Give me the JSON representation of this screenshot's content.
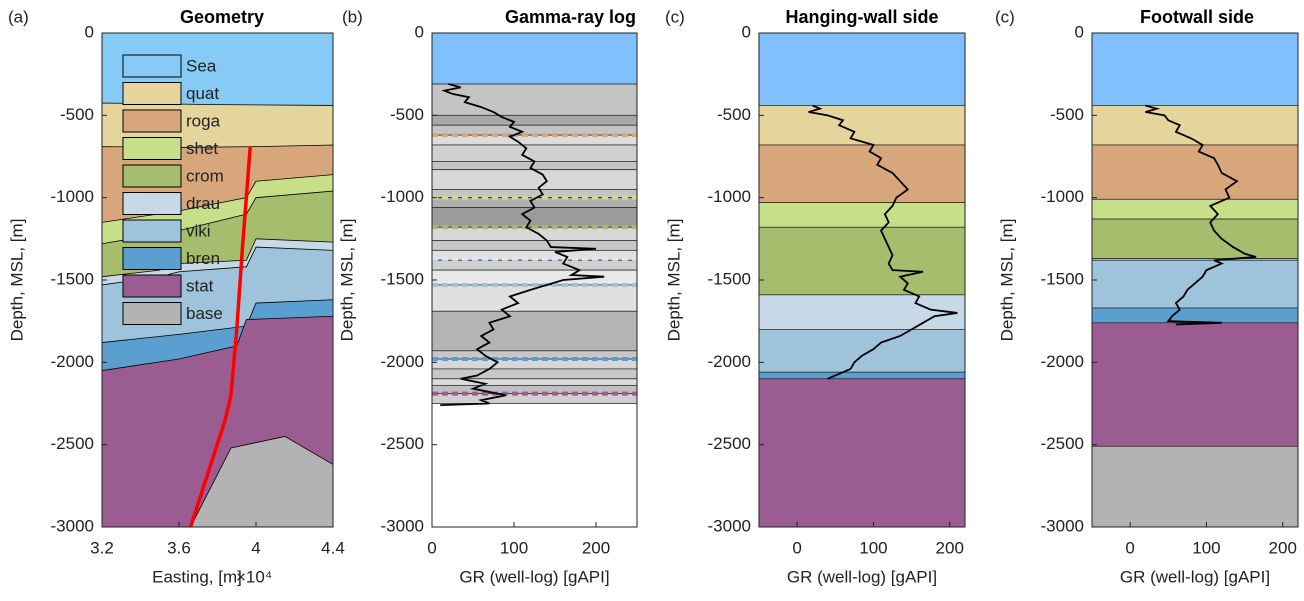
{
  "chart_data": [
    {
      "type": "area",
      "panel_label": "(a)",
      "title": "Geometry",
      "x_label": "Easting, [m]",
      "x_multiplier": "×10⁴",
      "y_label": "Depth, MSL, [m]",
      "xlim": [
        3.2,
        4.4
      ],
      "xticks": [
        3.2,
        3.6,
        4,
        4.4
      ],
      "ylim": [
        -3000,
        0
      ],
      "yticks": [
        0,
        -500,
        -1000,
        -1500,
        -2000,
        -2500,
        -3000
      ],
      "layers": [
        {
          "name": "Sea",
          "color": "#86cbf5",
          "x": [
            3.2,
            4.4
          ],
          "top": [
            0,
            0
          ]
        },
        {
          "name": "quat",
          "color": "#e3d59b",
          "x": [
            3.2,
            3.8,
            4.4
          ],
          "top": [
            -425,
            -435,
            -440
          ]
        },
        {
          "name": "roga",
          "color": "#d7a77b",
          "x": [
            3.2,
            3.6,
            4.0,
            4.4
          ],
          "top": [
            -690,
            -695,
            -690,
            -680
          ]
        },
        {
          "name": "shet",
          "color": "#c8df8a",
          "x": [
            3.2,
            3.6,
            3.95,
            4.0,
            4.4
          ],
          "top": [
            -1150,
            -1080,
            -1000,
            -900,
            -860
          ]
        },
        {
          "name": "crom",
          "color": "#a5bd6d",
          "x": [
            3.2,
            3.6,
            3.95,
            4.0,
            4.4
          ],
          "top": [
            -1280,
            -1200,
            -1100,
            -1000,
            -960
          ]
        },
        {
          "name": "drau",
          "color": "#c7d8e6",
          "x": [
            3.2,
            3.5,
            3.6,
            3.95,
            4.0,
            4.4
          ],
          "top": [
            -1480,
            -1440,
            -1400,
            -1380,
            -1250,
            -1270
          ]
        },
        {
          "name": "viki",
          "color": "#9fc3da",
          "x": [
            3.2,
            3.5,
            3.6,
            3.95,
            4.0,
            4.4
          ],
          "top": [
            -1530,
            -1480,
            -1450,
            -1420,
            -1300,
            -1320
          ]
        },
        {
          "name": "bren",
          "color": "#5a9fd0",
          "x": [
            3.2,
            3.6,
            3.95,
            4.0,
            4.4
          ],
          "top": [
            -1880,
            -1830,
            -1780,
            -1640,
            -1620
          ]
        },
        {
          "name": "stat",
          "color": "#9b5c92",
          "x": [
            3.2,
            3.6,
            3.9,
            3.95,
            4.4
          ],
          "top": [
            -2050,
            -1980,
            -1900,
            -1740,
            -1720
          ]
        },
        {
          "name": "base",
          "color": "#b3b3b3",
          "x": [
            3.66,
            3.87,
            4.15,
            4.4
          ],
          "top": [
            -3000,
            -2520,
            -2450,
            -2620
          ]
        }
      ],
      "fault": {
        "color": "#ff0000",
        "x": [
          3.97,
          3.93,
          3.9,
          3.87,
          3.84,
          3.66
        ],
        "y": [
          -690,
          -1300,
          -1800,
          -2200,
          -2350,
          -3000
        ]
      }
    },
    {
      "type": "line",
      "panel_label": "(b)",
      "title": "Gamma-ray log",
      "x_label": "GR (well-log) [gAPI]",
      "y_label": "Depth, MSL, [m]",
      "xlim": [
        0,
        250
      ],
      "xticks": [
        0,
        100,
        200
      ],
      "ylim": [
        -3000,
        0
      ],
      "yticks": [
        0,
        -500,
        -1000,
        -1500,
        -2000,
        -2500,
        -3000
      ],
      "layers": [
        {
          "top": 0,
          "bottom": -310,
          "color": "#80c0ff"
        },
        {
          "top": -310,
          "bottom": -500,
          "color": "#c4c4c4"
        },
        {
          "top": -500,
          "bottom": -560,
          "color": "#a8a8a8"
        },
        {
          "top": -560,
          "bottom": -620,
          "color": "#c4c4c4"
        },
        {
          "top": -620,
          "bottom": -680,
          "color": "#dcdcdc"
        },
        {
          "top": -680,
          "bottom": -780,
          "color": "#d0d0d0"
        },
        {
          "top": -780,
          "bottom": -830,
          "color": "#c4c4c4"
        },
        {
          "top": -830,
          "bottom": -950,
          "color": "#d8d8d8"
        },
        {
          "top": -950,
          "bottom": -1000,
          "color": "#c4c4c4"
        },
        {
          "top": -1000,
          "bottom": -1060,
          "color": "#b0b0b0"
        },
        {
          "top": -1060,
          "bottom": -1180,
          "color": "#9c9c9c"
        },
        {
          "top": -1180,
          "bottom": -1260,
          "color": "#d8d8d8"
        },
        {
          "top": -1260,
          "bottom": -1320,
          "color": "#c8c8c8"
        },
        {
          "top": -1320,
          "bottom": -1380,
          "color": "#e0e0e0"
        },
        {
          "top": -1380,
          "bottom": -1440,
          "color": "#d0d0d0"
        },
        {
          "top": -1440,
          "bottom": -1530,
          "color": "#e8e8e8"
        },
        {
          "top": -1530,
          "bottom": -1690,
          "color": "#e0e0e0"
        },
        {
          "top": -1690,
          "bottom": -1930,
          "color": "#b4b4b4"
        },
        {
          "top": -1930,
          "bottom": -1980,
          "color": "#c8c8c8"
        },
        {
          "top": -1980,
          "bottom": -2040,
          "color": "#d8d8d8"
        },
        {
          "top": -2040,
          "bottom": -2100,
          "color": "#c8c8c8"
        },
        {
          "top": -2100,
          "bottom": -2140,
          "color": "#dcdcdc"
        },
        {
          "top": -2140,
          "bottom": -2190,
          "color": "#c0c0c0"
        },
        {
          "top": -2190,
          "bottom": -2250,
          "color": "#d0d0d0"
        }
      ],
      "markers": [
        {
          "depth": -620,
          "color": "#d7a77b"
        },
        {
          "depth": -1000,
          "color": "#c8df8a"
        },
        {
          "depth": -1180,
          "color": "#a5bd6d"
        },
        {
          "depth": -1370,
          "color": "#dbe8f2"
        },
        {
          "depth": -1530,
          "color": "#9fc3da"
        },
        {
          "depth": -1980,
          "color": "#5a9fd0"
        },
        {
          "depth": -2190,
          "color": "#9b5c92"
        }
      ],
      "log": {
        "x": [
          20,
          35,
          15,
          25,
          45,
          40,
          60,
          75,
          85,
          100,
          95,
          110,
          95,
          105,
          115,
          110,
          125,
          120,
          135,
          140,
          130,
          135,
          120,
          125,
          110,
          120,
          115,
          130,
          140,
          145,
          200,
          150,
          165,
          160,
          180,
          170,
          210,
          160,
          140,
          120,
          95,
          105,
          85,
          95,
          70,
          75,
          60,
          70,
          55,
          65,
          80,
          70,
          55,
          35,
          65,
          50,
          90,
          60,
          70,
          10
        ],
        "y": [
          -310,
          -330,
          -350,
          -370,
          -390,
          -420,
          -450,
          -480,
          -510,
          -540,
          -570,
          -600,
          -630,
          -660,
          -700,
          -740,
          -780,
          -820,
          -860,
          -900,
          -940,
          -980,
          -1020,
          -1060,
          -1100,
          -1140,
          -1180,
          -1220,
          -1260,
          -1300,
          -1310,
          -1330,
          -1360,
          -1400,
          -1440,
          -1470,
          -1480,
          -1500,
          -1530,
          -1560,
          -1600,
          -1640,
          -1680,
          -1720,
          -1760,
          -1800,
          -1840,
          -1880,
          -1920,
          -1960,
          -2000,
          -2040,
          -2080,
          -2100,
          -2130,
          -2160,
          -2200,
          -2230,
          -2250,
          -2260
        ]
      }
    },
    {
      "type": "line",
      "panel_label": "(c)",
      "title": "Hanging-wall side",
      "x_label": "GR (well-log) [gAPI]",
      "y_label": "Depth, MSL, [m]",
      "xlim": [
        -50,
        220
      ],
      "xticks": [
        0,
        100,
        200
      ],
      "ylim": [
        -3000,
        0
      ],
      "yticks": [
        0,
        -500,
        -1000,
        -1500,
        -2000,
        -2500,
        -3000
      ],
      "layers": [
        {
          "top": 0,
          "bottom": -440,
          "color": "#80c0ff"
        },
        {
          "top": -440,
          "bottom": -680,
          "color": "#e3d59b"
        },
        {
          "top": -680,
          "bottom": -1030,
          "color": "#d7a77b"
        },
        {
          "top": -1030,
          "bottom": -1180,
          "color": "#c8df8a"
        },
        {
          "top": -1180,
          "bottom": -1590,
          "color": "#a5bd6d"
        },
        {
          "top": -1590,
          "bottom": -1800,
          "color": "#c7d8e6"
        },
        {
          "top": -1800,
          "bottom": -2060,
          "color": "#9fc3da"
        },
        {
          "top": -2060,
          "bottom": -2100,
          "color": "#5a9fd0"
        },
        {
          "top": -2100,
          "bottom": -3000,
          "color": "#9b5c92"
        }
      ],
      "log": {
        "x": [
          20,
          30,
          15,
          40,
          60,
          55,
          75,
          70,
          100,
          95,
          110,
          105,
          125,
          135,
          145,
          130,
          125,
          115,
          120,
          110,
          115,
          120,
          125,
          120,
          125,
          165,
          135,
          145,
          140,
          160,
          155,
          175,
          210,
          180,
          165,
          150,
          135,
          110,
          100,
          85,
          75,
          70,
          55,
          40
        ],
        "y": [
          -440,
          -460,
          -480,
          -500,
          -530,
          -560,
          -600,
          -640,
          -680,
          -720,
          -760,
          -800,
          -850,
          -900,
          -950,
          -1000,
          -1050,
          -1100,
          -1150,
          -1200,
          -1250,
          -1300,
          -1350,
          -1400,
          -1440,
          -1450,
          -1480,
          -1520,
          -1560,
          -1600,
          -1640,
          -1680,
          -1700,
          -1720,
          -1760,
          -1800,
          -1840,
          -1880,
          -1920,
          -1960,
          -2000,
          -2040,
          -2070,
          -2100
        ]
      }
    },
    {
      "type": "line",
      "panel_label": "(c)",
      "title": "Footwall side",
      "x_label": "GR (well-log) [gAPI]",
      "y_label": "Depth, MSL, [m]",
      "xlim": [
        -50,
        220
      ],
      "xticks": [
        0,
        100,
        200
      ],
      "ylim": [
        -3000,
        0
      ],
      "yticks": [
        0,
        -500,
        -1000,
        -1500,
        -2000,
        -2500,
        -3000
      ],
      "layers": [
        {
          "top": 0,
          "bottom": -440,
          "color": "#80c0ff"
        },
        {
          "top": -440,
          "bottom": -680,
          "color": "#e3d59b"
        },
        {
          "top": -680,
          "bottom": -1010,
          "color": "#d7a77b"
        },
        {
          "top": -1010,
          "bottom": -1130,
          "color": "#c8df8a"
        },
        {
          "top": -1130,
          "bottom": -1370,
          "color": "#a5bd6d"
        },
        {
          "top": -1370,
          "bottom": -1380,
          "color": "#c7d8e6"
        },
        {
          "top": -1380,
          "bottom": -1670,
          "color": "#9fc3da"
        },
        {
          "top": -1670,
          "bottom": -1760,
          "color": "#5a9fd0"
        },
        {
          "top": -1760,
          "bottom": -2510,
          "color": "#9b5c92"
        },
        {
          "top": -2510,
          "bottom": -3000,
          "color": "#b3b3b3"
        }
      ],
      "log": {
        "x": [
          20,
          35,
          20,
          45,
          50,
          65,
          60,
          80,
          95,
          90,
          110,
          115,
          120,
          140,
          125,
          130,
          105,
          115,
          105,
          110,
          120,
          135,
          150,
          165,
          110,
          120,
          100,
          95,
          85,
          75,
          70,
          60,
          65,
          55,
          50,
          120,
          60
        ],
        "y": [
          -440,
          -460,
          -480,
          -500,
          -530,
          -560,
          -600,
          -640,
          -680,
          -720,
          -760,
          -800,
          -850,
          -900,
          -950,
          -1000,
          -1050,
          -1100,
          -1150,
          -1200,
          -1250,
          -1300,
          -1340,
          -1360,
          -1380,
          -1400,
          -1440,
          -1480,
          -1520,
          -1560,
          -1600,
          -1640,
          -1680,
          -1720,
          -1750,
          -1760,
          -1770
        ]
      }
    }
  ]
}
